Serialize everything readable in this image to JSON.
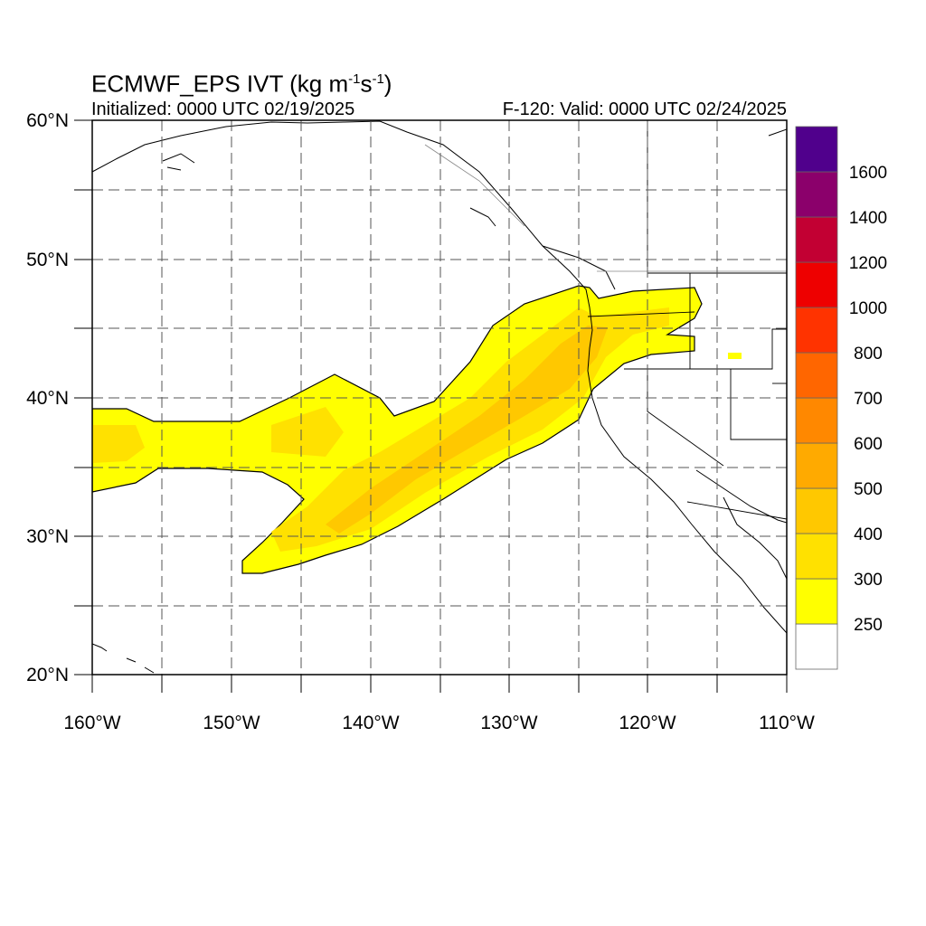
{
  "header": {
    "title_main": "ECMWF_EPS IVT (kg m",
    "title_exp1": "-1",
    "title_mid": "s",
    "title_exp2": "-1",
    "title_end": ")",
    "initialized": "Initialized: 0000 UTC 02/19/2025",
    "valid": "F-120: Valid: 0000 UTC 02/24/2025"
  },
  "map": {
    "lon_range": [
      -160,
      -110
    ],
    "lat_range": [
      20,
      60
    ],
    "lat_labels": [
      "20°N",
      "30°N",
      "40°N",
      "50°N",
      "60°N"
    ],
    "lon_labels": [
      "160°W",
      "150°W",
      "140°W",
      "130°W",
      "120°W",
      "110°W"
    ],
    "grid": "dashed, every 5°"
  },
  "colorbar": {
    "labels": [
      "250",
      "300",
      "400",
      "500",
      "600",
      "700",
      "800",
      "1000",
      "1200",
      "1400",
      "1600"
    ],
    "colors": [
      "#ffffff",
      "#ffff00",
      "#ffe100",
      "#ffc800",
      "#ffaa00",
      "#ff8800",
      "#ff6600",
      "#ff3300",
      "#ee0000",
      "#c20033",
      "#8b006b",
      "#50008c"
    ]
  }
}
